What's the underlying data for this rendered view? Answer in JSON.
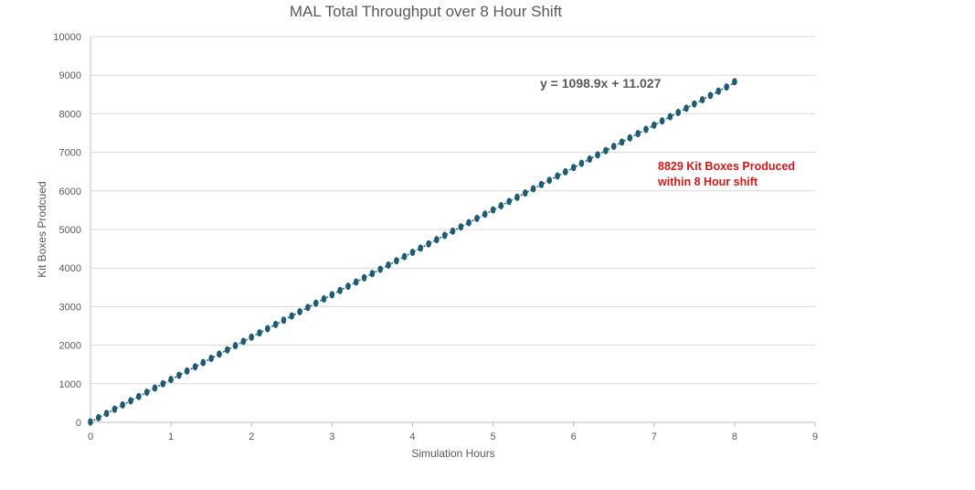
{
  "chart_data": {
    "type": "scatter",
    "title": "MAL Total Throughput over 8 Hour Shift",
    "xlabel": "Simulation Hours",
    "ylabel": "Kit Boxes Prodcued",
    "xlim": [
      0,
      9
    ],
    "ylim": [
      0,
      10000
    ],
    "x_ticks": [
      "0",
      "1",
      "2",
      "3",
      "4",
      "5",
      "6",
      "7",
      "8",
      "9"
    ],
    "y_ticks": [
      "0",
      "1000",
      "2000",
      "3000",
      "4000",
      "5000",
      "6000",
      "7000",
      "8000",
      "9000",
      "10000"
    ],
    "grid": "horizontal",
    "marker_color": "#1f5c73",
    "trendline": {
      "type": "linear",
      "slope": 1098.9,
      "intercept": 11.027,
      "equation": "y = 1098.9x + 11.027"
    },
    "series": [
      {
        "x": [
          0.0,
          0.1,
          0.2,
          0.3,
          0.4,
          0.5,
          0.6,
          0.7,
          0.8,
          0.9,
          1.0,
          1.1,
          1.2,
          1.3,
          1.4,
          1.5,
          1.6,
          1.7,
          1.8,
          1.9,
          2.0,
          2.1,
          2.2,
          2.3,
          2.4,
          2.5,
          2.6,
          2.7,
          2.8,
          2.9,
          3.0,
          3.1,
          3.2,
          3.3,
          3.4,
          3.5,
          3.6,
          3.7,
          3.8,
          3.9,
          4.0,
          4.1,
          4.2,
          4.3,
          4.4,
          4.5,
          4.6,
          4.7,
          4.8,
          4.9,
          5.0,
          5.1,
          5.2,
          5.3,
          5.4,
          5.5,
          5.6,
          5.7,
          5.8,
          5.9,
          6.0,
          6.1,
          6.2,
          6.3,
          6.4,
          6.5,
          6.6,
          6.7,
          6.8,
          6.9,
          7.0,
          7.1,
          7.2,
          7.3,
          7.4,
          7.5,
          7.6,
          7.7,
          7.8,
          7.9,
          8.0
        ],
        "y": [
          11,
          121,
          231,
          341,
          451,
          560,
          670,
          780,
          890,
          1000,
          1110,
          1220,
          1330,
          1440,
          1549,
          1659,
          1769,
          1879,
          1989,
          2099,
          2209,
          2319,
          2429,
          2538,
          2648,
          2758,
          2868,
          2978,
          3088,
          3198,
          3308,
          3418,
          3528,
          3637,
          3747,
          3857,
          3967,
          4077,
          4187,
          4297,
          4407,
          4517,
          4626,
          4736,
          4846,
          4956,
          5066,
          5176,
          5286,
          5396,
          5506,
          5615,
          5725,
          5835,
          5945,
          6055,
          6165,
          6275,
          6385,
          6495,
          6604,
          6714,
          6824,
          6934,
          7044,
          7154,
          7264,
          7374,
          7484,
          7594,
          7703,
          7813,
          7923,
          8033,
          8143,
          8253,
          8363,
          8473,
          8583,
          8693,
          8829
        ]
      }
    ],
    "annotations": [
      {
        "text": "8829 Kit Boxes Produced",
        "color": "#d0181b"
      },
      {
        "text": "within 8 Hour shift",
        "color": "#d0181b"
      }
    ]
  }
}
